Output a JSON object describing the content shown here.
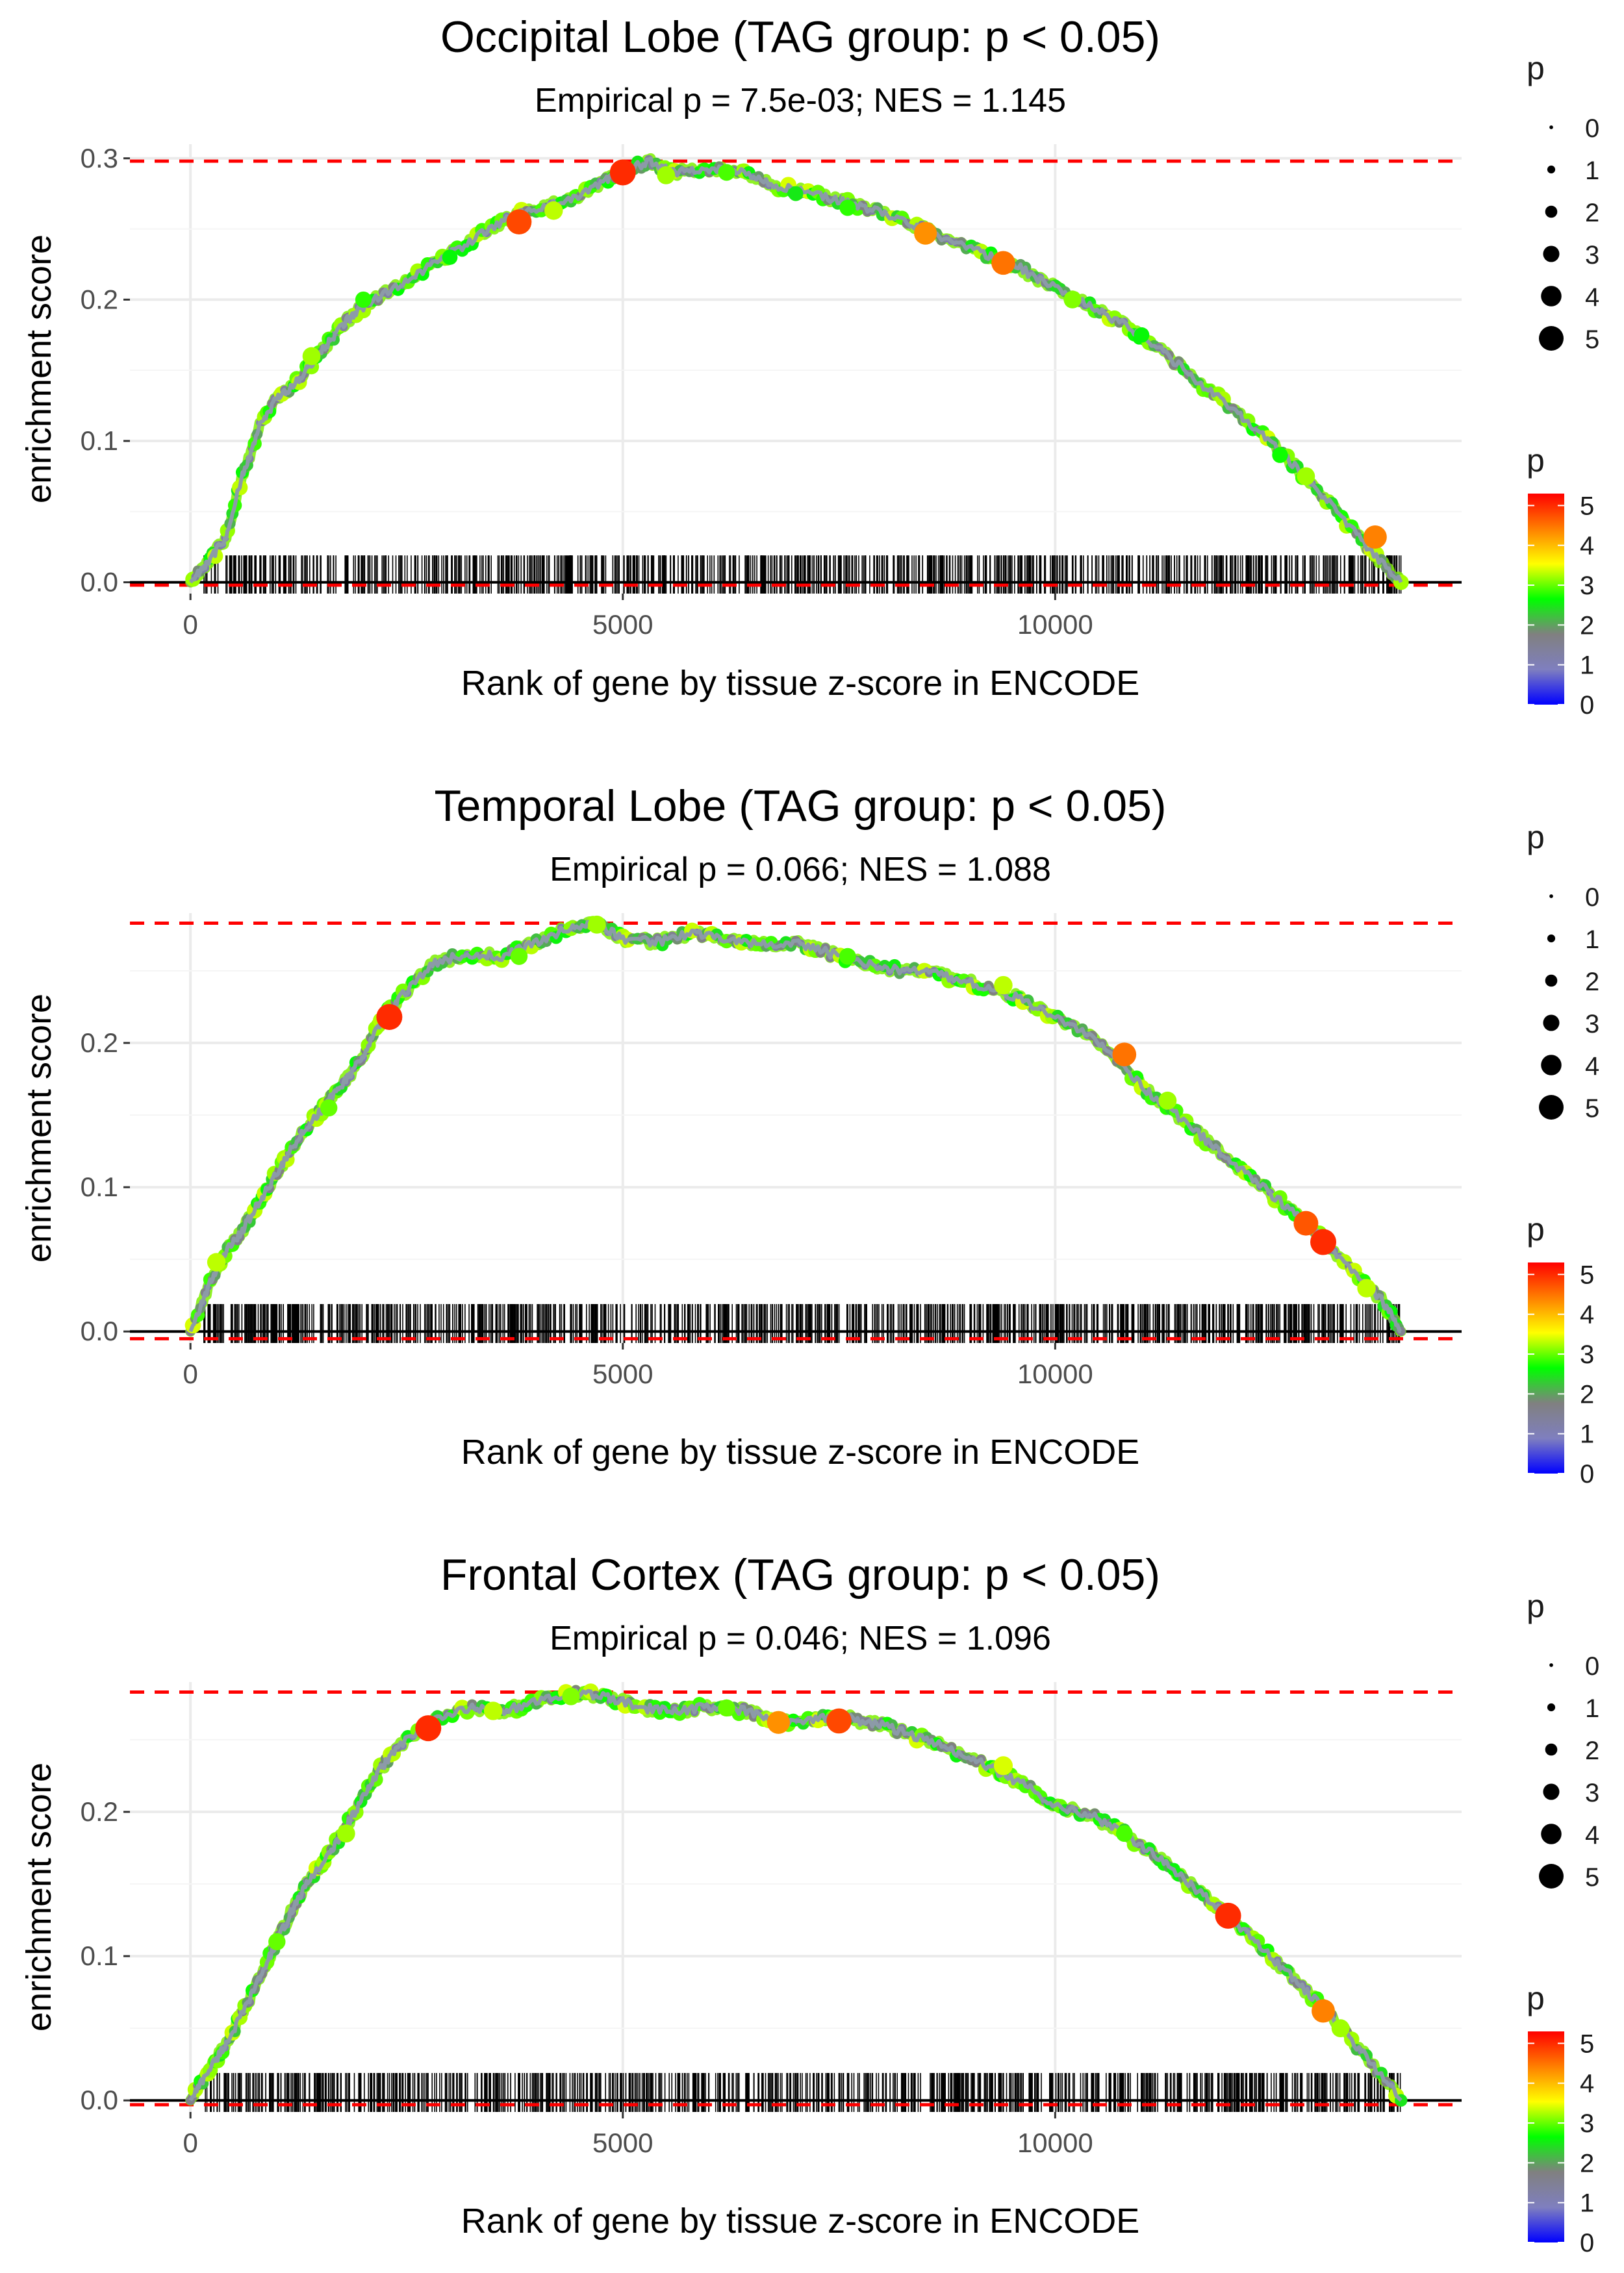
{
  "colors": {
    "grid": "#ebebeb",
    "ref_line": "#ff0000",
    "baseline": "#000000",
    "curve": "#8c9aa8",
    "gradient": [
      "#0000ff",
      "#7f7fbf",
      "#808080",
      "#00ff00",
      "#ffff00",
      "#ff7f00",
      "#ff0000"
    ]
  },
  "chart_data": [
    {
      "type": "line",
      "title": "Occipital Lobe (TAG group: p < 0.05)",
      "subtitle": "Empirical p = 7.5e-03; NES = 1.145",
      "xlabel": "Rank of gene by tissue z-score in ENCODE",
      "ylabel": "enrichment score",
      "xlim": [
        -700,
        14700
      ],
      "ylim": [
        -0.008,
        0.31
      ],
      "x_ticks": [
        0,
        5000,
        10000
      ],
      "x_tick_labels": [
        "0",
        "5000",
        "10000"
      ],
      "y_ticks": [
        0.0,
        0.1,
        0.2,
        0.3
      ],
      "y_tick_labels": [
        "0.0",
        "0.1",
        "0.2",
        "0.3"
      ],
      "max_es": 0.298,
      "min_es": -0.002,
      "curve": {
        "x": [
          0,
          200,
          400,
          600,
          800,
          1000,
          1200,
          1400,
          1600,
          1800,
          2000,
          2400,
          2800,
          3200,
          3600,
          4000,
          4400,
          4800,
          5000,
          5300,
          5600,
          6000,
          6400,
          6800,
          7200,
          7600,
          8000,
          8400,
          8800,
          9200,
          9600,
          10000,
          10400,
          10800,
          11200,
          11600,
          12000,
          12400,
          12800,
          13200,
          13600,
          14000
        ],
        "y": [
          0.0,
          0.015,
          0.03,
          0.075,
          0.11,
          0.13,
          0.14,
          0.155,
          0.17,
          0.185,
          0.195,
          0.21,
          0.225,
          0.24,
          0.255,
          0.265,
          0.27,
          0.285,
          0.29,
          0.298,
          0.29,
          0.292,
          0.29,
          0.28,
          0.275,
          0.268,
          0.262,
          0.252,
          0.242,
          0.232,
          0.222,
          0.208,
          0.195,
          0.182,
          0.165,
          0.145,
          0.125,
          0.105,
          0.08,
          0.055,
          0.025,
          0.0
        ]
      },
      "hits": {
        "x": [
          3800,
          5000,
          8500,
          9400,
          13700,
          1400,
          2000,
          3000,
          4200,
          5500,
          6200,
          7000,
          7600,
          10200,
          11000,
          12600,
          12900
        ],
        "y": [
          0.255,
          0.29,
          0.247,
          0.226,
          0.032,
          0.16,
          0.2,
          0.23,
          0.263,
          0.288,
          0.29,
          0.275,
          0.265,
          0.2,
          0.175,
          0.09,
          0.075
        ],
        "p": [
          4.8,
          5.0,
          4.3,
          4.5,
          4.4,
          3.2,
          2.8,
          2.6,
          3.3,
          3.2,
          2.9,
          2.5,
          2.8,
          3.1,
          2.6,
          2.7,
          3.2
        ]
      },
      "rug": {
        "seed": 11,
        "count": 900,
        "density_shift": 0.0
      }
    },
    {
      "type": "line",
      "title": "Temporal Lobe (TAG group: p < 0.05)",
      "subtitle": "Empirical p = 0.066; NES = 1.088",
      "xlabel": "Rank of gene by tissue z-score in ENCODE",
      "ylabel": "enrichment score",
      "xlim": [
        -700,
        14700
      ],
      "ylim": [
        -0.008,
        0.29
      ],
      "x_ticks": [
        0,
        5000,
        10000
      ],
      "x_tick_labels": [
        "0",
        "5000",
        "10000"
      ],
      "y_ticks": [
        0.0,
        0.1,
        0.2
      ],
      "y_tick_labels": [
        "0.0",
        "0.1",
        "0.2"
      ],
      "max_es": 0.283,
      "min_es": -0.005,
      "curve": {
        "x": [
          0,
          200,
          400,
          600,
          800,
          1000,
          1200,
          1400,
          1600,
          1800,
          2000,
          2200,
          2400,
          2800,
          3200,
          3600,
          4000,
          4400,
          4700,
          5000,
          5400,
          5800,
          6200,
          6600,
          7000,
          7400,
          7800,
          8200,
          8600,
          9000,
          9400,
          9800,
          10200,
          10600,
          11000,
          11400,
          11800,
          12200,
          12600,
          13000,
          13400,
          13800,
          14000
        ],
        "y": [
          0.0,
          0.03,
          0.055,
          0.07,
          0.09,
          0.11,
          0.13,
          0.145,
          0.16,
          0.175,
          0.19,
          0.215,
          0.23,
          0.255,
          0.262,
          0.26,
          0.27,
          0.28,
          0.283,
          0.272,
          0.27,
          0.276,
          0.272,
          0.268,
          0.27,
          0.262,
          0.255,
          0.25,
          0.248,
          0.242,
          0.235,
          0.225,
          0.212,
          0.195,
          0.17,
          0.15,
          0.13,
          0.11,
          0.09,
          0.07,
          0.045,
          0.02,
          0.0
        ]
      },
      "hits": {
        "x": [
          2300,
          10800,
          12900,
          13100,
          300,
          1600,
          3800,
          4700,
          7600,
          9400,
          11300,
          13600
        ],
        "y": [
          0.218,
          0.192,
          0.075,
          0.062,
          0.048,
          0.155,
          0.26,
          0.282,
          0.26,
          0.24,
          0.16,
          0.03
        ],
        "p": [
          5.0,
          4.5,
          4.7,
          5.0,
          3.3,
          3.0,
          3.0,
          3.2,
          2.9,
          3.3,
          3.2,
          3.3
        ]
      },
      "rug": {
        "seed": 23,
        "count": 1000,
        "density_shift": 0.0
      }
    },
    {
      "type": "line",
      "title": "Frontal Cortex (TAG group: p < 0.05)",
      "subtitle": "Empirical p = 0.046; NES = 1.096",
      "xlabel": "Rank of gene by tissue z-score in ENCODE",
      "ylabel": "enrichment score",
      "xlim": [
        -700,
        14700
      ],
      "ylim": [
        -0.008,
        0.29
      ],
      "x_ticks": [
        0,
        5000,
        10000
      ],
      "x_tick_labels": [
        "0",
        "5000",
        "10000"
      ],
      "y_ticks": [
        0.0,
        0.1,
        0.2
      ],
      "y_tick_labels": [
        "0.0",
        "0.1",
        "0.2"
      ],
      "max_es": 0.283,
      "min_es": -0.003,
      "curve": {
        "x": [
          0,
          200,
          400,
          600,
          800,
          1000,
          1200,
          1400,
          1600,
          1800,
          2000,
          2200,
          2400,
          2800,
          3200,
          3600,
          4000,
          4400,
          4800,
          5200,
          5600,
          6000,
          6400,
          6800,
          7200,
          7600,
          8000,
          8400,
          8800,
          9200,
          9600,
          10000,
          10400,
          10800,
          11200,
          11600,
          12000,
          12400,
          12800,
          13200,
          13600,
          14000
        ],
        "y": [
          0.0,
          0.02,
          0.038,
          0.06,
          0.085,
          0.11,
          0.135,
          0.155,
          0.17,
          0.19,
          0.21,
          0.23,
          0.245,
          0.262,
          0.272,
          0.27,
          0.276,
          0.282,
          0.28,
          0.272,
          0.27,
          0.273,
          0.27,
          0.262,
          0.265,
          0.265,
          0.26,
          0.252,
          0.243,
          0.232,
          0.22,
          0.205,
          0.198,
          0.185,
          0.168,
          0.148,
          0.128,
          0.105,
          0.082,
          0.058,
          0.03,
          0.0
        ]
      },
      "hits": {
        "x": [
          2750,
          6800,
          7500,
          12000,
          13100,
          1000,
          1800,
          3500,
          4400,
          6200,
          9400,
          10800,
          13300
        ],
        "y": [
          0.258,
          0.262,
          0.263,
          0.128,
          0.062,
          0.11,
          0.185,
          0.27,
          0.28,
          0.272,
          0.232,
          0.185,
          0.05
        ],
        "p": [
          5.0,
          4.3,
          4.8,
          5.0,
          4.4,
          3.0,
          3.2,
          3.3,
          3.1,
          3.0,
          3.4,
          2.9,
          3.2
        ]
      },
      "rug": {
        "seed": 37,
        "count": 950,
        "density_shift": 0.0
      }
    }
  ],
  "legend": {
    "size_title": "p",
    "size_labels": [
      "0",
      "1",
      "2",
      "3",
      "4",
      "5"
    ],
    "size_values": [
      0,
      1,
      2,
      3,
      4,
      5
    ],
    "color_title": "p",
    "color_labels": [
      "0",
      "1",
      "2",
      "3",
      "4",
      "5"
    ],
    "color_values": [
      0,
      1,
      2,
      3,
      4,
      5
    ],
    "color_range": [
      0,
      5.3
    ]
  }
}
